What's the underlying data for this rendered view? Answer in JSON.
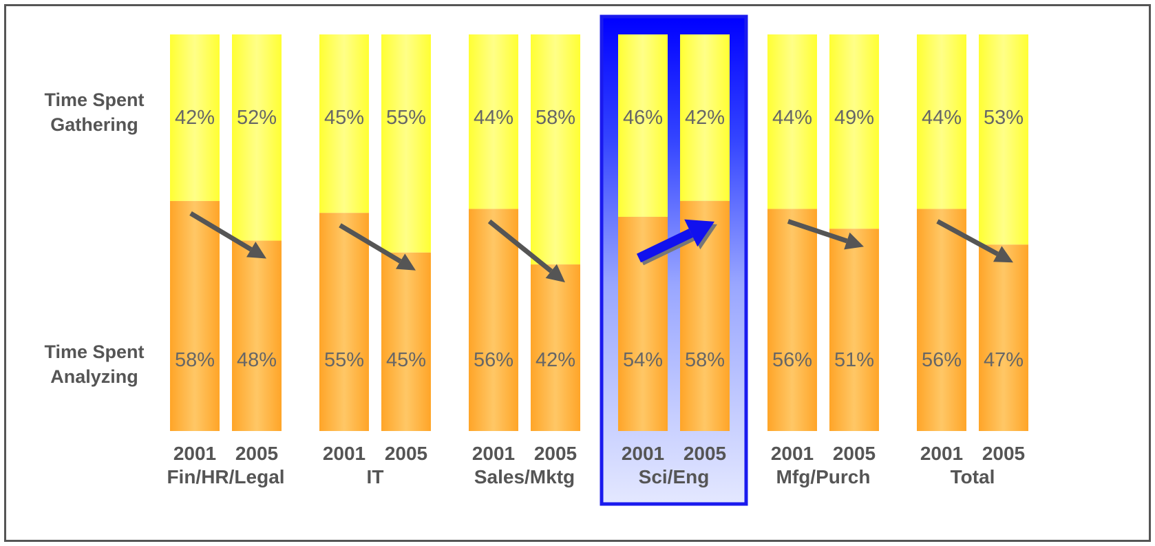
{
  "chart_data": {
    "type": "bar",
    "stacked": true,
    "row_labels": {
      "gathering": "Time Spent\nGathering",
      "analyzing": "Time Spent\nAnalyzing"
    },
    "groups": [
      {
        "category": "Fin/HR/Legal",
        "years": [
          "2001",
          "2005"
        ],
        "gathering": [
          42,
          52
        ],
        "analyzing": [
          58,
          48
        ],
        "trend": "down"
      },
      {
        "category": "IT",
        "years": [
          "2001",
          "2005"
        ],
        "gathering": [
          45,
          55
        ],
        "analyzing": [
          55,
          45
        ],
        "trend": "down"
      },
      {
        "category": "Sales/Mktg",
        "years": [
          "2001",
          "2005"
        ],
        "gathering": [
          44,
          58
        ],
        "analyzing": [
          56,
          42
        ],
        "trend": "down"
      },
      {
        "category": "Sci/Eng",
        "years": [
          "2001",
          "2005"
        ],
        "gathering": [
          46,
          42
        ],
        "analyzing": [
          54,
          58
        ],
        "trend": "up",
        "highlighted": true
      },
      {
        "category": "Mfg/Purch",
        "years": [
          "2001",
          "2005"
        ],
        "gathering": [
          44,
          49
        ],
        "analyzing": [
          56,
          51
        ],
        "trend": "down"
      },
      {
        "category": "Total",
        "years": [
          "2001",
          "2005"
        ],
        "gathering": [
          44,
          53
        ],
        "analyzing": [
          56,
          47
        ],
        "trend": "down"
      }
    ],
    "ylim": [
      0,
      100
    ],
    "colors": {
      "gathering": "#ffff44",
      "analyzing": "#ffaa33",
      "arrow": "#555555",
      "highlight_arrow": "#1111ee",
      "highlight_border": "#1a1aee"
    }
  }
}
